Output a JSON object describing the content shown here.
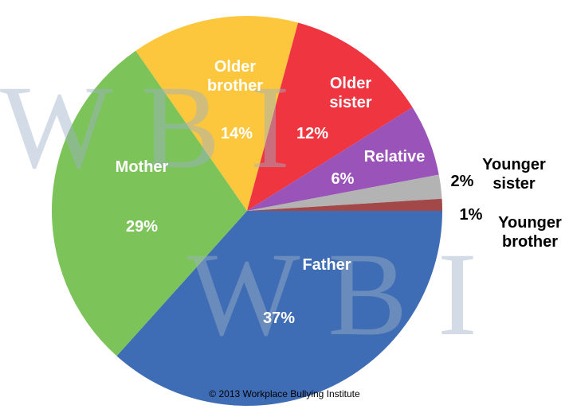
{
  "chart_data": {
    "type": "pie",
    "watermark": "W B I",
    "source": "© 2013 Workplace Bullying Institute",
    "categories": [
      "Father",
      "Mother",
      "Older brother",
      "Older sister",
      "Relative",
      "Younger sister",
      "Younger brother"
    ],
    "values": [
      37,
      29,
      14,
      12,
      6,
      2,
      1
    ],
    "value_labels": [
      "37%",
      "29%",
      "14%",
      "12%",
      "6%",
      "2%",
      "1%"
    ],
    "colors": [
      "#3f6db5",
      "#7cc35a",
      "#fcc73c",
      "#ef3540",
      "#9a53b8",
      "#b3b3b3",
      "#a34848"
    ]
  }
}
